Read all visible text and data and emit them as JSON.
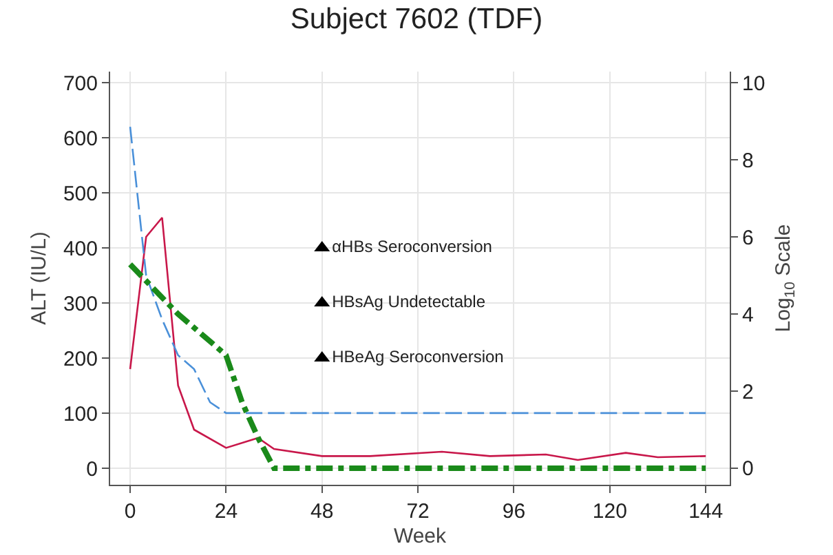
{
  "chart_data": {
    "type": "line",
    "title": "Subject 7602 (TDF)",
    "xlabel": "Week",
    "ylabel": "ALT (IU/L)",
    "y2label": "Log$_{10}$ Scale",
    "xlim": [
      -5,
      150
    ],
    "xticks": [
      0,
      24,
      48,
      72,
      96,
      120,
      144
    ],
    "ylim": [
      -30,
      720
    ],
    "yticks": [
      0,
      100,
      200,
      300,
      400,
      500,
      600,
      700
    ],
    "y2lim": [
      -0.43,
      10.29
    ],
    "y2ticks": [
      0,
      2,
      4,
      6,
      8,
      10
    ],
    "grid": true,
    "series": [
      {
        "color": "#c8174a",
        "x": [
          0,
          4,
          8,
          12,
          16,
          24,
          32,
          36,
          48,
          60,
          78,
          90,
          104,
          112,
          124,
          132,
          144
        ],
        "values": [
          180,
          420,
          455,
          150,
          70,
          37,
          55,
          35,
          22,
          22,
          30,
          22,
          25,
          15,
          28,
          20,
          22
        ],
        "line_style": "solid",
        "marker": "none"
      },
      {
        "color": "#4a90d9",
        "axis": "y2",
        "x": [
          0,
          4,
          8,
          12,
          16,
          20,
          24,
          144
        ],
        "values": [
          8.86,
          5.0,
          3.86,
          2.93,
          2.57,
          1.71,
          1.43,
          1.43
        ],
        "line_style": "dashed",
        "marker": "none"
      },
      {
        "color": "#1a8a1a",
        "axis": "y2",
        "x": [
          0,
          12,
          20,
          24,
          28,
          32,
          36,
          144
        ],
        "values": [
          5.29,
          4.0,
          3.29,
          2.93,
          1.71,
          0.79,
          0,
          0
        ],
        "line_style": "dashdot",
        "marker": "none"
      },
      {
        "type": "scatter",
        "color": "#000000",
        "x": [
          48,
          48,
          48
        ],
        "values": [
          400,
          300,
          200
        ],
        "marker": "triangle",
        "value_labels": [
          "αHBs Seroconversion",
          "HBsAg Undetectable",
          "HBeAg Seroconversion"
        ]
      }
    ]
  }
}
